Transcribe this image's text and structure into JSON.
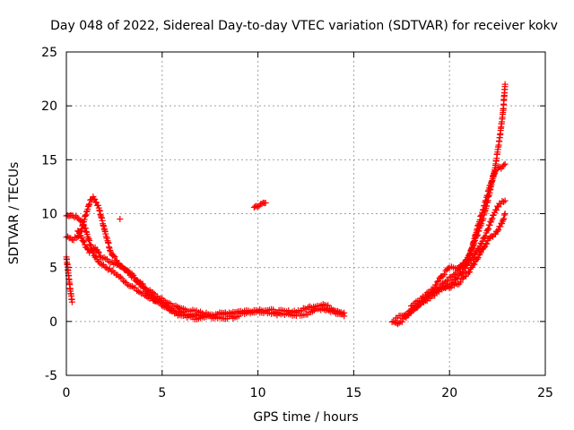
{
  "chart_data": {
    "type": "scatter",
    "title": "Day 048 of 2022, Sidereal Day-to-day VTEC variation (SDTVAR) for receiver kokv",
    "xlabel": "GPS time / hours",
    "ylabel": "SDTVAR / TECUs",
    "xlim": [
      0,
      25
    ],
    "ylim": [
      -5,
      25
    ],
    "xticks": [
      0,
      5,
      10,
      15,
      20,
      25
    ],
    "yticks": [
      -5,
      0,
      5,
      10,
      15,
      20,
      25
    ],
    "grid": true,
    "marker": "plus",
    "color": "#ff0000",
    "tracks": [
      [
        [
          0.0,
          9.8
        ],
        [
          0.2,
          9.9
        ],
        [
          0.5,
          9.7
        ],
        [
          0.8,
          9.3
        ],
        [
          1.0,
          8.6
        ],
        [
          1.2,
          7.4
        ],
        [
          1.4,
          6.3
        ],
        [
          1.7,
          5.5
        ],
        [
          2.1,
          5.0
        ],
        [
          2.6,
          4.4
        ],
        [
          3.2,
          3.5
        ],
        [
          4.0,
          2.5
        ],
        [
          4.8,
          1.8
        ],
        [
          5.5,
          1.1
        ],
        [
          6.2,
          0.7
        ],
        [
          7.0,
          0.5
        ],
        [
          7.8,
          0.6
        ],
        [
          8.5,
          0.8
        ],
        [
          9.2,
          0.8
        ],
        [
          9.8,
          0.9
        ],
        [
          10.4,
          0.9
        ],
        [
          11.0,
          0.7
        ],
        [
          11.8,
          0.6
        ],
        [
          12.5,
          0.7
        ],
        [
          13.2,
          1.2
        ],
        [
          13.8,
          0.9
        ],
        [
          14.5,
          0.5
        ]
      ],
      [
        [
          0.0,
          7.8
        ],
        [
          0.3,
          7.6
        ],
        [
          0.6,
          7.8
        ],
        [
          0.8,
          8.6
        ],
        [
          1.0,
          9.8
        ],
        [
          1.2,
          11.0
        ],
        [
          1.4,
          11.6
        ],
        [
          1.7,
          10.5
        ],
        [
          2.0,
          8.5
        ],
        [
          2.3,
          6.5
        ],
        [
          2.8,
          5.2
        ],
        [
          3.5,
          4.2
        ],
        [
          4.2,
          3.0
        ],
        [
          5.0,
          2.0
        ],
        [
          5.8,
          1.3
        ],
        [
          6.5,
          1.0
        ],
        [
          7.3,
          0.7
        ],
        [
          8.0,
          0.7
        ],
        [
          8.8,
          0.9
        ],
        [
          9.5,
          1.0
        ],
        [
          10.2,
          1.1
        ],
        [
          10.8,
          1.0
        ],
        [
          11.5,
          0.9
        ],
        [
          12.2,
          1.0
        ],
        [
          12.8,
          1.4
        ],
        [
          13.4,
          1.6
        ],
        [
          14.0,
          1.1
        ],
        [
          14.5,
          0.8
        ]
      ],
      [
        [
          0.0,
          6.0
        ],
        [
          0.1,
          4.5
        ],
        [
          0.2,
          3.0
        ],
        [
          0.3,
          1.8
        ]
      ],
      [
        [
          0.6,
          8.5
        ],
        [
          0.8,
          7.8
        ],
        [
          1.0,
          7.0
        ],
        [
          1.2,
          6.5
        ],
        [
          1.5,
          6.8
        ],
        [
          1.8,
          6.0
        ],
        [
          2.3,
          5.5
        ],
        [
          3.0,
          5.0
        ],
        [
          3.8,
          3.5
        ],
        [
          4.5,
          2.2
        ],
        [
          5.3,
          1.2
        ],
        [
          6.0,
          0.5
        ],
        [
          6.8,
          0.3
        ],
        [
          7.5,
          0.4
        ],
        [
          8.3,
          0.3
        ],
        [
          9.0,
          0.5
        ]
      ],
      [
        [
          2.8,
          9.5
        ]
      ],
      [
        [
          9.8,
          10.5
        ],
        [
          10.0,
          10.7
        ],
        [
          10.2,
          10.9
        ],
        [
          10.4,
          11.0
        ]
      ],
      [
        [
          17.0,
          0.0
        ],
        [
          17.3,
          -0.3
        ],
        [
          17.6,
          0.2
        ],
        [
          18.0,
          0.9
        ],
        [
          18.5,
          1.7
        ],
        [
          19.0,
          2.6
        ],
        [
          19.5,
          3.2
        ],
        [
          20.0,
          4.0
        ],
        [
          20.5,
          4.8
        ],
        [
          21.0,
          6.0
        ],
        [
          21.4,
          7.8
        ],
        [
          21.8,
          9.8
        ],
        [
          22.1,
          12.0
        ],
        [
          22.4,
          14.5
        ],
        [
          22.6,
          16.8
        ],
        [
          22.8,
          19.5
        ],
        [
          22.9,
          22.0
        ]
      ],
      [
        [
          17.2,
          0.3
        ],
        [
          17.8,
          0.8
        ],
        [
          18.4,
          1.5
        ],
        [
          19.0,
          2.2
        ],
        [
          19.6,
          3.0
        ],
        [
          20.1,
          3.5
        ],
        [
          20.5,
          4.2
        ],
        [
          20.9,
          5.2
        ],
        [
          21.2,
          7.0
        ],
        [
          21.5,
          9.0
        ],
        [
          21.8,
          10.6
        ],
        [
          22.1,
          12.5
        ],
        [
          22.4,
          14.0
        ],
        [
          22.7,
          14.3
        ],
        [
          22.9,
          14.6
        ]
      ],
      [
        [
          18.0,
          1.5
        ],
        [
          18.6,
          2.2
        ],
        [
          19.2,
          3.2
        ],
        [
          19.6,
          4.2
        ],
        [
          20.0,
          5.0
        ],
        [
          20.4,
          5.0
        ],
        [
          20.8,
          5.2
        ],
        [
          21.2,
          5.8
        ],
        [
          21.6,
          7.0
        ],
        [
          22.0,
          8.5
        ],
        [
          22.3,
          10.0
        ],
        [
          22.6,
          10.9
        ],
        [
          22.9,
          11.2
        ]
      ],
      [
        [
          19.0,
          2.5
        ],
        [
          19.5,
          3.0
        ],
        [
          20.0,
          3.2
        ],
        [
          20.5,
          3.6
        ],
        [
          21.0,
          4.5
        ],
        [
          21.5,
          6.0
        ],
        [
          22.0,
          7.5
        ],
        [
          22.4,
          8.2
        ],
        [
          22.7,
          9.0
        ],
        [
          22.9,
          10.0
        ]
      ]
    ]
  }
}
